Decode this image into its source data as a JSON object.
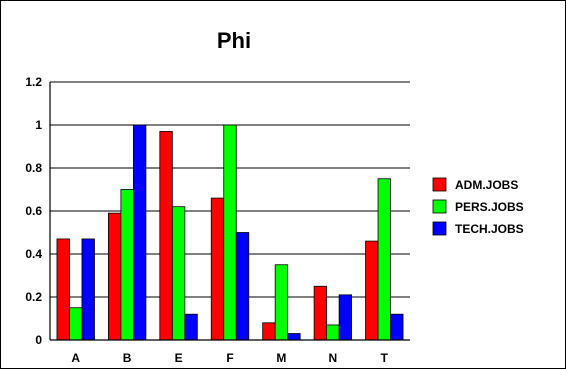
{
  "chart_data": {
    "type": "bar",
    "title": "Phi",
    "xlabel": "",
    "ylabel": "",
    "categories": [
      "A",
      "B",
      "E",
      "F",
      "M",
      "N",
      "T"
    ],
    "ylim": [
      0,
      1.2
    ],
    "yticks": [
      "0",
      "0.2",
      "0.4",
      "0.6",
      "0.8",
      "1",
      "1.2"
    ],
    "grid": true,
    "legend_position": "right",
    "series": [
      {
        "name": "ADM.JOBS",
        "color": "#ff0000",
        "values": [
          0.47,
          0.59,
          0.97,
          0.66,
          0.08,
          0.25,
          0.46
        ]
      },
      {
        "name": "PERS.JOBS",
        "color": "#00ff00",
        "values": [
          0.15,
          0.7,
          0.62,
          1.0,
          0.35,
          0.07,
          0.75
        ]
      },
      {
        "name": "TECH.JOBS",
        "color": "#0000ff",
        "values": [
          0.47,
          1.0,
          0.12,
          0.5,
          0.03,
          0.21,
          0.12
        ]
      }
    ]
  }
}
